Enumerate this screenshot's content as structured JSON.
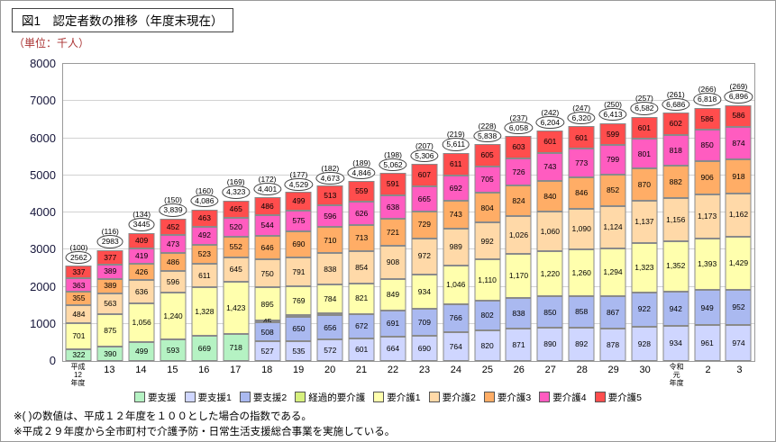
{
  "figure": {
    "title": "図1　認定者数の推移（年度末現在）",
    "unit_label": "（単位：千人）",
    "footnotes": [
      "※(  )の数値は、平成１２年度を１００とした場合の指数である。",
      "※平成２９年度から全市町村で介護予防・日常生活支援総合事業を実施している。"
    ]
  },
  "colors": {
    "unit_label": "#aa3333",
    "grid": "#d2d2d2",
    "plot_border": "#9a9a9a",
    "segment_border": "#8a8a8a"
  },
  "chart_data": {
    "type": "bar",
    "stacked": true,
    "title": "認定者数の推移（年度末現在）",
    "ylabel": "千人",
    "ylim": [
      0,
      8000
    ],
    "yticks": [
      0,
      1000,
      2000,
      3000,
      4000,
      5000,
      6000,
      7000,
      8000
    ],
    "grid": true,
    "legend_position": "bottom",
    "legend": [
      {
        "label": "要支援",
        "color": "#b5f2c3"
      },
      {
        "label": "要支援1",
        "color": "#cfd6ff"
      },
      {
        "label": "要支援2",
        "color": "#aab9f0"
      },
      {
        "label": "経過的要介護",
        "color": "#d6f07d"
      },
      {
        "label": "要介護1",
        "color": "#ffffad"
      },
      {
        "label": "要介護2",
        "color": "#ffd9a8"
      },
      {
        "label": "要介護3",
        "color": "#ffad66"
      },
      {
        "label": "要介護4",
        "color": "#ff5cc0"
      },
      {
        "label": "要介護5",
        "color": "#ff4d4d"
      }
    ],
    "bars": [
      {
        "x_label": "平成\n12\n年度",
        "index": "(100)",
        "total": "2562",
        "segments": [
          [
            "要支援",
            322
          ],
          [
            "要介護1",
            701
          ],
          [
            "要介護2",
            484
          ],
          [
            "要介護3",
            355
          ],
          [
            "要介護4",
            363
          ],
          [
            "要介護5",
            337
          ]
        ]
      },
      {
        "x_label": "13",
        "index": "(116)",
        "total": "2983",
        "segments": [
          [
            "要支援",
            390
          ],
          [
            "要介護1",
            875
          ],
          [
            "要介護2",
            563
          ],
          [
            "要介護3",
            389
          ],
          [
            "要介護4",
            389
          ],
          [
            "要介護5",
            377
          ]
        ]
      },
      {
        "x_label": "14",
        "index": "(134)",
        "total": "3445",
        "segments": [
          [
            "要支援",
            499
          ],
          [
            "要介護1",
            1056
          ],
          [
            "要介護2",
            636
          ],
          [
            "要介護3",
            426
          ],
          [
            "要介護4",
            419
          ],
          [
            "要介護5",
            409
          ]
        ]
      },
      {
        "x_label": "15",
        "index": "(150)",
        "total": "3,839",
        "segments": [
          [
            "要支援",
            593
          ],
          [
            "要介護1",
            1240
          ],
          [
            "要介護2",
            596
          ],
          [
            "要介護3",
            486
          ],
          [
            "要介護4",
            473
          ],
          [
            "要介護5",
            452
          ]
        ]
      },
      {
        "x_label": "16",
        "index": "(160)",
        "total": "4,086",
        "segments": [
          [
            "要支援",
            669
          ],
          [
            "要介護1",
            1328
          ],
          [
            "要介護2",
            611
          ],
          [
            "要介護3",
            523
          ],
          [
            "要介護4",
            492
          ],
          [
            "要介護5",
            463
          ]
        ]
      },
      {
        "x_label": "17",
        "index": "(169)",
        "total": "4,323",
        "segments": [
          [
            "要支援",
            718
          ],
          [
            "要介護1",
            1423
          ],
          [
            "要介護2",
            645
          ],
          [
            "要介護3",
            552
          ],
          [
            "要介護4",
            520
          ],
          [
            "要介護5",
            465
          ]
        ]
      },
      {
        "x_label": "18",
        "index": "(172)",
        "total": "4,401",
        "segments": [
          [
            "要支援1",
            527
          ],
          [
            "要支援2",
            508
          ],
          [
            "経過的要介護",
            45
          ],
          [
            "要介護1",
            895
          ],
          [
            "要介護2",
            750
          ],
          [
            "要介護3",
            646
          ],
          [
            "要介護4",
            544
          ],
          [
            "要介護5",
            486
          ]
        ]
      },
      {
        "x_label": "19",
        "index": "(177)",
        "total": "4,529",
        "segments": [
          [
            "要支援1",
            535
          ],
          [
            "要支援2",
            650
          ],
          [
            "経過的要介護",
            20
          ],
          [
            "要介護1",
            769
          ],
          [
            "要介護2",
            791
          ],
          [
            "要介護3",
            690
          ],
          [
            "要介護4",
            575
          ],
          [
            "要介護5",
            499
          ]
        ]
      },
      {
        "x_label": "20",
        "index": "(182)",
        "total": "4,673",
        "segments": [
          [
            "要支援1",
            572
          ],
          [
            "要支援2",
            656
          ],
          [
            "経過的要介護",
            4
          ],
          [
            "要介護1",
            784
          ],
          [
            "要介護2",
            838
          ],
          [
            "要介護3",
            710
          ],
          [
            "要介護4",
            596
          ],
          [
            "要介護5",
            513
          ]
        ]
      },
      {
        "x_label": "21",
        "index": "(189)",
        "total": "4,846",
        "segments": [
          [
            "要支援1",
            601
          ],
          [
            "要支援2",
            672
          ],
          [
            "要介護1",
            821
          ],
          [
            "要介護2",
            854
          ],
          [
            "要介護3",
            713
          ],
          [
            "要介護4",
            626
          ],
          [
            "要介護5",
            559
          ]
        ]
      },
      {
        "x_label": "22",
        "index": "(198)",
        "total": "5,062",
        "segments": [
          [
            "要支援1",
            664
          ],
          [
            "要支援2",
            691
          ],
          [
            "要介護1",
            849
          ],
          [
            "要介護2",
            908
          ],
          [
            "要介護3",
            721
          ],
          [
            "要介護4",
            638
          ],
          [
            "要介護5",
            591
          ]
        ]
      },
      {
        "x_label": "23",
        "index": "(207)",
        "total": "5,306",
        "segments": [
          [
            "要支援1",
            690
          ],
          [
            "要支援2",
            709
          ],
          [
            "要介護1",
            934
          ],
          [
            "要介護2",
            972
          ],
          [
            "要介護3",
            729
          ],
          [
            "要介護4",
            665
          ],
          [
            "要介護5",
            607
          ]
        ]
      },
      {
        "x_label": "24",
        "index": "(219)",
        "total": "5,611",
        "segments": [
          [
            "要支援1",
            764
          ],
          [
            "要支援2",
            766
          ],
          [
            "要介護1",
            1046
          ],
          [
            "要介護2",
            989
          ],
          [
            "要介護3",
            743
          ],
          [
            "要介護4",
            692
          ],
          [
            "要介護5",
            611
          ]
        ]
      },
      {
        "x_label": "25",
        "index": "(228)",
        "total": "5,838",
        "segments": [
          [
            "要支援1",
            820
          ],
          [
            "要支援2",
            802
          ],
          [
            "要介護1",
            1110
          ],
          [
            "要介護2",
            992
          ],
          [
            "要介護3",
            804
          ],
          [
            "要介護4",
            705
          ],
          [
            "要介護5",
            605
          ]
        ]
      },
      {
        "x_label": "26",
        "index": "(237)",
        "total": "6,058",
        "segments": [
          [
            "要支援1",
            871
          ],
          [
            "要支援2",
            838
          ],
          [
            "要介護1",
            1170
          ],
          [
            "要介護2",
            1026
          ],
          [
            "要介護3",
            824
          ],
          [
            "要介護4",
            726
          ],
          [
            "要介護5",
            603
          ]
        ]
      },
      {
        "x_label": "27",
        "index": "(242)",
        "total": "6,204",
        "segments": [
          [
            "要支援1",
            890
          ],
          [
            "要支援2",
            850
          ],
          [
            "要介護1",
            1220
          ],
          [
            "要介護2",
            1060
          ],
          [
            "要介護3",
            840
          ],
          [
            "要介護4",
            743
          ],
          [
            "要介護5",
            601
          ]
        ]
      },
      {
        "x_label": "28",
        "index": "(247)",
        "total": "6,320",
        "segments": [
          [
            "要支援1",
            892
          ],
          [
            "要支援2",
            858
          ],
          [
            "要介護1",
            1260
          ],
          [
            "要介護2",
            1090
          ],
          [
            "要介護3",
            846
          ],
          [
            "要介護4",
            773
          ],
          [
            "要介護5",
            601
          ]
        ]
      },
      {
        "x_label": "29",
        "index": "(250)",
        "total": "6,413",
        "segments": [
          [
            "要支援1",
            878
          ],
          [
            "要支援2",
            867
          ],
          [
            "要介護1",
            1294
          ],
          [
            "要介護2",
            1124
          ],
          [
            "要介護3",
            852
          ],
          [
            "要介護4",
            799
          ],
          [
            "要介護5",
            599
          ]
        ]
      },
      {
        "x_label": "30",
        "index": "(257)",
        "total": "6,582",
        "segments": [
          [
            "要支援1",
            928
          ],
          [
            "要支援2",
            922
          ],
          [
            "要介護1",
            1323
          ],
          [
            "要介護2",
            1137
          ],
          [
            "要介護3",
            870
          ],
          [
            "要介護4",
            801
          ],
          [
            "要介護5",
            601
          ]
        ]
      },
      {
        "x_label": "令和\n元\n年度",
        "index": "(261)",
        "total": "6,686",
        "segments": [
          [
            "要支援1",
            934
          ],
          [
            "要支援2",
            942
          ],
          [
            "要介護1",
            1352
          ],
          [
            "要介護2",
            1156
          ],
          [
            "要介護3",
            882
          ],
          [
            "要介護4",
            818
          ],
          [
            "要介護5",
            602
          ]
        ]
      },
      {
        "x_label": "2",
        "index": "(266)",
        "total": "6,818",
        "segments": [
          [
            "要支援1",
            961
          ],
          [
            "要支援2",
            949
          ],
          [
            "要介護1",
            1393
          ],
          [
            "要介護2",
            1173
          ],
          [
            "要介護3",
            906
          ],
          [
            "要介護4",
            850
          ],
          [
            "要介護5",
            586
          ]
        ]
      },
      {
        "x_label": "3",
        "index": "(269)",
        "total": "6,896",
        "segments": [
          [
            "要支援1",
            974
          ],
          [
            "要支援2",
            952
          ],
          [
            "要介護1",
            1429
          ],
          [
            "要介護2",
            1162
          ],
          [
            "要介護3",
            918
          ],
          [
            "要介護4",
            874
          ],
          [
            "要介護5",
            586
          ]
        ]
      }
    ]
  }
}
